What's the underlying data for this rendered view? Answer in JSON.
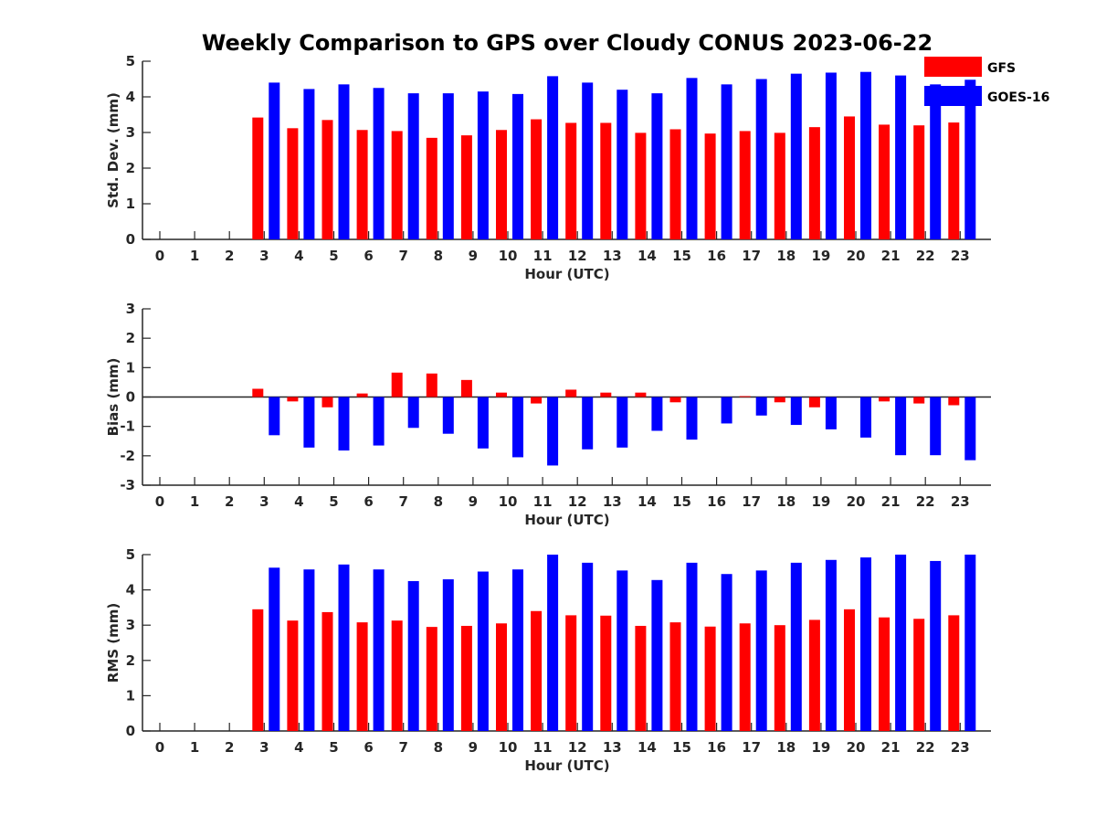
{
  "title": "Weekly Comparison to GPS over Cloudy CONUS 2023-06-22",
  "legend": [
    {
      "name": "GFS",
      "color": "#ff0000"
    },
    {
      "name": "GOES-16",
      "color": "#0000ff"
    }
  ],
  "chart_data": [
    {
      "type": "bar",
      "title": "Weekly Comparison to GPS over Cloudy CONUS 2023-06-22",
      "xlabel": "Hour (UTC)",
      "ylabel": "Std. Dev. (mm)",
      "categories": [
        "0",
        "1",
        "2",
        "3",
        "4",
        "5",
        "6",
        "7",
        "8",
        "9",
        "10",
        "11",
        "12",
        "13",
        "14",
        "15",
        "16",
        "17",
        "18",
        "19",
        "20",
        "21",
        "22",
        "23"
      ],
      "ylim": [
        0,
        5
      ],
      "yticks": [
        "0",
        "1",
        "2",
        "3",
        "4",
        "5"
      ],
      "legend_position": "top-right",
      "grid": false,
      "series": [
        {
          "name": "GFS",
          "color": "#ff0000",
          "values": [
            null,
            null,
            null,
            3.42,
            3.12,
            3.35,
            3.07,
            3.04,
            2.85,
            2.92,
            3.07,
            3.37,
            3.27,
            3.27,
            2.99,
            3.09,
            2.97,
            3.04,
            2.99,
            3.15,
            3.45,
            3.22,
            3.2,
            3.28
          ]
        },
        {
          "name": "GOES-16",
          "color": "#0000ff",
          "values": [
            null,
            null,
            null,
            4.4,
            4.22,
            4.35,
            4.25,
            4.1,
            4.1,
            4.15,
            4.08,
            4.58,
            4.4,
            4.2,
            4.1,
            4.53,
            4.35,
            4.5,
            4.65,
            4.68,
            4.7,
            4.6,
            4.35,
            4.48
          ]
        }
      ]
    },
    {
      "type": "bar",
      "xlabel": "Hour (UTC)",
      "ylabel": "Bias (mm)",
      "categories": [
        "0",
        "1",
        "2",
        "3",
        "4",
        "5",
        "6",
        "7",
        "8",
        "9",
        "10",
        "11",
        "12",
        "13",
        "14",
        "15",
        "16",
        "17",
        "18",
        "19",
        "20",
        "21",
        "22",
        "23"
      ],
      "ylim": [
        -3,
        3
      ],
      "yticks": [
        "-3",
        "-2",
        "-1",
        "0",
        "1",
        "2",
        "3"
      ],
      "grid": false,
      "series": [
        {
          "name": "GFS",
          "color": "#ff0000",
          "values": [
            null,
            null,
            null,
            0.28,
            -0.15,
            -0.35,
            0.12,
            0.83,
            0.8,
            0.58,
            0.15,
            -0.22,
            0.25,
            0.15,
            0.15,
            -0.18,
            0.0,
            0.03,
            -0.18,
            -0.35,
            0.0,
            -0.15,
            -0.22,
            -0.28
          ]
        },
        {
          "name": "GOES-16",
          "color": "#0000ff",
          "values": [
            null,
            null,
            null,
            -1.3,
            -1.72,
            -1.82,
            -1.65,
            -1.05,
            -1.25,
            -1.75,
            -2.05,
            -2.33,
            -1.78,
            -1.72,
            -1.15,
            -1.45,
            -0.9,
            -0.63,
            -0.95,
            -1.1,
            -1.38,
            -1.98,
            -1.98,
            -2.15
          ]
        }
      ]
    },
    {
      "type": "bar",
      "xlabel": "Hour (UTC)",
      "ylabel": "RMS (mm)",
      "categories": [
        "0",
        "1",
        "2",
        "3",
        "4",
        "5",
        "6",
        "7",
        "8",
        "9",
        "10",
        "11",
        "12",
        "13",
        "14",
        "15",
        "16",
        "17",
        "18",
        "19",
        "20",
        "21",
        "22",
        "23"
      ],
      "ylim": [
        0,
        5
      ],
      "yticks": [
        "0",
        "1",
        "2",
        "3",
        "4",
        "5"
      ],
      "grid": false,
      "series": [
        {
          "name": "GFS",
          "color": "#ff0000",
          "values": [
            null,
            null,
            null,
            3.45,
            3.13,
            3.37,
            3.08,
            3.13,
            2.95,
            2.98,
            3.05,
            3.4,
            3.28,
            3.27,
            2.98,
            3.08,
            2.96,
            3.05,
            3.0,
            3.15,
            3.45,
            3.22,
            3.18,
            3.28
          ]
        },
        {
          "name": "GOES-16",
          "color": "#0000ff",
          "values": [
            null,
            null,
            null,
            4.63,
            4.58,
            4.72,
            4.58,
            4.25,
            4.3,
            4.52,
            4.58,
            5.0,
            4.77,
            4.55,
            4.28,
            4.77,
            4.45,
            4.55,
            4.77,
            4.85,
            4.92,
            5.0,
            4.82,
            5.0
          ]
        }
      ]
    }
  ]
}
